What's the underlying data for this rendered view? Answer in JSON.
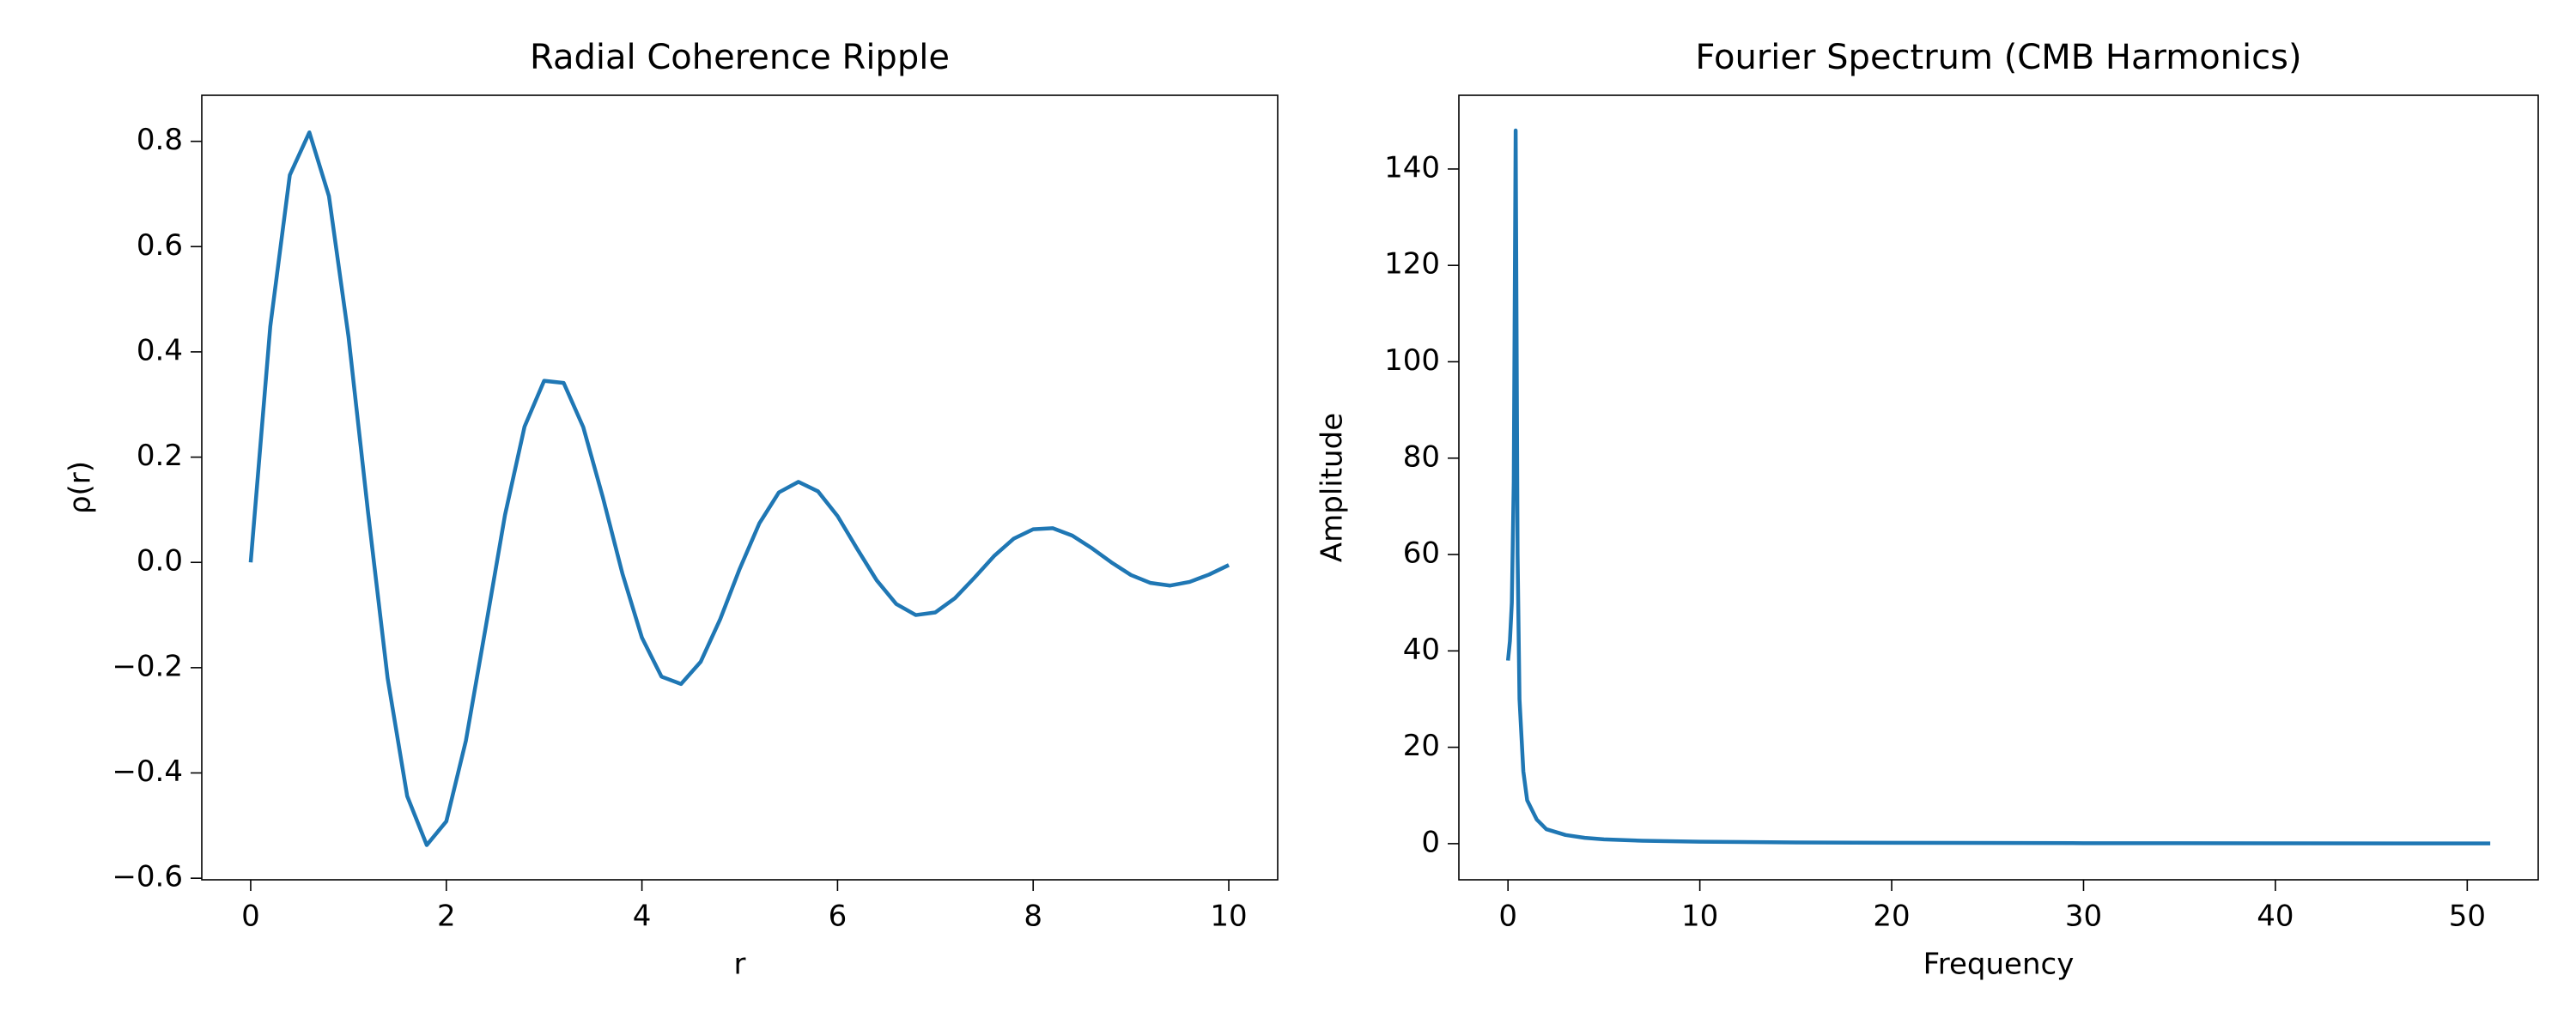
{
  "chart_data": [
    {
      "type": "line",
      "title": "Radial Coherence Ripple",
      "xlabel": "r",
      "ylabel": "ρ(r)",
      "color": "#1f77b4",
      "x": [
        0,
        0.2,
        0.4,
        0.6,
        0.8,
        1.0,
        1.2,
        1.4,
        1.6,
        1.8,
        2.0,
        2.2,
        2.4,
        2.6,
        2.8,
        3.0,
        3.2,
        3.4,
        3.6,
        3.8,
        4.0,
        4.2,
        4.4,
        4.6,
        4.8,
        5.0,
        5.2,
        5.4,
        5.6,
        5.8,
        6.0,
        6.2,
        6.4,
        6.6,
        6.8,
        7.0,
        7.2,
        7.4,
        7.6,
        7.8,
        8.0,
        8.2,
        8.4,
        8.6,
        8.8,
        9.0,
        9.2,
        9.4,
        9.6,
        9.8,
        10
      ],
      "values": [
        0,
        0.448,
        0.736,
        0.817,
        0.696,
        0.429,
        0.095,
        -0.22,
        -0.444,
        -0.537,
        -0.492,
        -0.339,
        -0.126,
        0.09,
        0.258,
        0.345,
        0.341,
        0.257,
        0.124,
        -0.021,
        -0.143,
        -0.217,
        -0.231,
        -0.189,
        -0.108,
        -0.012,
        0.074,
        0.133,
        0.153,
        0.135,
        0.088,
        0.026,
        -0.034,
        -0.079,
        -0.1,
        -0.095,
        -0.068,
        -0.029,
        0.012,
        0.045,
        0.063,
        0.065,
        0.051,
        0.027,
        0,
        -0.024,
        -0.039,
        -0.044,
        -0.037,
        -0.023,
        -0.005
      ],
      "xlim": [
        -0.5,
        10.5
      ],
      "xticks": [
        0,
        2,
        4,
        6,
        8,
        10
      ],
      "ylim": [
        -0.603,
        0.8875
      ],
      "yticks": [
        {
          "value": -0.6,
          "label": "−0.6"
        },
        {
          "value": -0.4,
          "label": "−0.4"
        },
        {
          "value": -0.2,
          "label": "−0.2"
        },
        {
          "value": 0,
          "label": "0.0"
        },
        0.2,
        0.4,
        0.6,
        0.8
      ],
      "grid": false
    },
    {
      "type": "line",
      "title": "Fourier Spectrum (CMB Harmonics)",
      "xlabel": "Frequency",
      "ylabel": "Amplitude",
      "color": "#1f77b4",
      "x": [
        0,
        0.1,
        0.2,
        0.3,
        0.4,
        0.5,
        0.6,
        0.8,
        1,
        1.5,
        2,
        3,
        4,
        5,
        7,
        10,
        15,
        20,
        30,
        40,
        51.2
      ],
      "values": [
        38,
        42,
        50,
        75,
        148,
        60,
        30,
        15,
        9,
        5,
        3,
        1.8,
        1.2,
        0.9,
        0.6,
        0.4,
        0.25,
        0.18,
        0.1,
        0.07,
        0.05
      ],
      "xlim": [
        -2.56,
        53.7
      ],
      "xticks": [
        0,
        10,
        20,
        30,
        40,
        50
      ],
      "ylim": [
        -7.5,
        155.3
      ],
      "yticks": [
        0,
        20,
        40,
        60,
        80,
        100,
        120,
        140
      ],
      "grid": false
    }
  ]
}
